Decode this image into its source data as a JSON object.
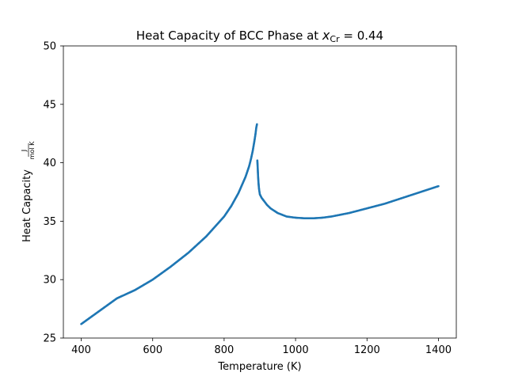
{
  "chart_data": {
    "type": "scatter",
    "title": {
      "prefix": "Heat Capacity of BCC Phase at ",
      "var": "x",
      "sub": "Cr",
      "suffix": " = 0.44"
    },
    "xlabel": "Temperature (K)",
    "ylabel": {
      "text": "Heat Capacity",
      "unit_num": "J",
      "unit_den": "mol K"
    },
    "xlim": [
      350,
      1450
    ],
    "ylim": [
      25,
      50
    ],
    "xticks": [
      400,
      600,
      800,
      1000,
      1200,
      1400
    ],
    "yticks": [
      25,
      30,
      35,
      40,
      45,
      50
    ],
    "marker_color": "#1f77b4",
    "grid": false,
    "series": [
      {
        "name": "BCC",
        "x": [
          400,
          450,
          500,
          550,
          600,
          650,
          700,
          750,
          800,
          820,
          840,
          850,
          860,
          870,
          875,
          880,
          885,
          888,
          890,
          892,
          893,
          894,
          895,
          896,
          897,
          898,
          899,
          900,
          905,
          910,
          920,
          930,
          950,
          975,
          1000,
          1025,
          1050,
          1075,
          1100,
          1150,
          1200,
          1250,
          1300,
          1350,
          1400
        ],
        "y": [
          26.2,
          27.3,
          28.4,
          29.1,
          30.0,
          31.1,
          32.3,
          33.7,
          35.4,
          36.3,
          37.4,
          38.1,
          38.8,
          39.7,
          40.3,
          41.0,
          41.9,
          42.5,
          43.0,
          43.3,
          40.2,
          39.6,
          38.9,
          38.4,
          38.0,
          37.7,
          37.5,
          37.3,
          37.0,
          36.8,
          36.4,
          36.1,
          35.7,
          35.4,
          35.3,
          35.25,
          35.25,
          35.3,
          35.4,
          35.7,
          36.1,
          36.5,
          37.0,
          37.5,
          38.0
        ]
      }
    ]
  }
}
